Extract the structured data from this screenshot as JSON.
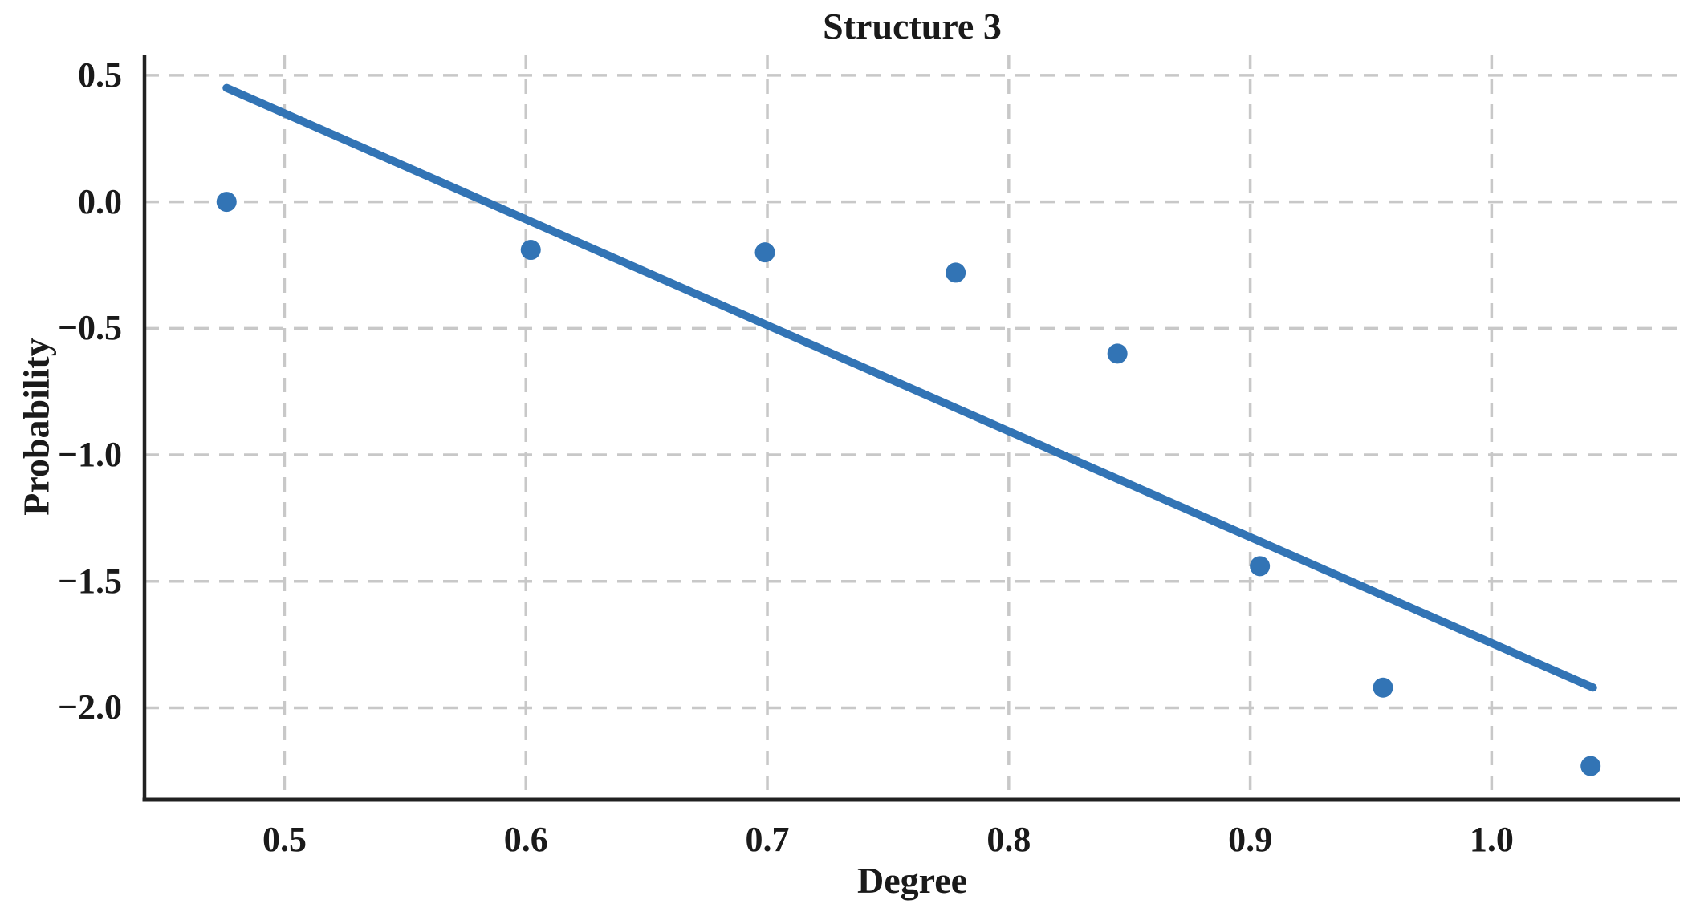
{
  "page": {
    "background": "#ffffff"
  },
  "chart_data": {
    "type": "scatter",
    "title": "Structure 3",
    "xlabel": "Degree",
    "ylabel": "Probability",
    "xlim": [
      0.442,
      1.078
    ],
    "ylim": [
      -2.363,
      0.582
    ],
    "grid": true,
    "grid_style": "dashed",
    "legend": "none",
    "xticks": {
      "values": [
        0.5,
        0.6,
        0.7,
        0.8,
        0.9,
        1.0
      ],
      "labels": [
        "0.5",
        "0.6",
        "0.7",
        "0.8",
        "0.9",
        "1.0"
      ]
    },
    "yticks": {
      "values": [
        0.5,
        0.0,
        -0.5,
        -1.0,
        -1.5,
        -2.0
      ],
      "labels": [
        "0.5",
        "0.0",
        "−0.5",
        "−1.0",
        "−1.5",
        "−2.0"
      ]
    },
    "series": [
      {
        "name": "scatter-points",
        "type": "scatter",
        "points": [
          [
            0.476,
            0.0
          ],
          [
            0.602,
            -0.19
          ],
          [
            0.699,
            -0.2
          ],
          [
            0.778,
            -0.28
          ],
          [
            0.845,
            -0.6
          ],
          [
            0.904,
            -1.44
          ],
          [
            0.955,
            -1.92
          ],
          [
            1.041,
            -2.23
          ]
        ]
      },
      {
        "name": "trend-line",
        "type": "line",
        "points": [
          [
            0.476,
            0.45
          ],
          [
            1.042,
            -1.92
          ]
        ]
      }
    ],
    "colors": {
      "marker": "#3274b5",
      "line": "#3274b5",
      "grid": "#c8c8c8",
      "spine": "#212121",
      "text": "#1a1a1a"
    },
    "marker_radius": 12.5,
    "line_width": 10
  }
}
